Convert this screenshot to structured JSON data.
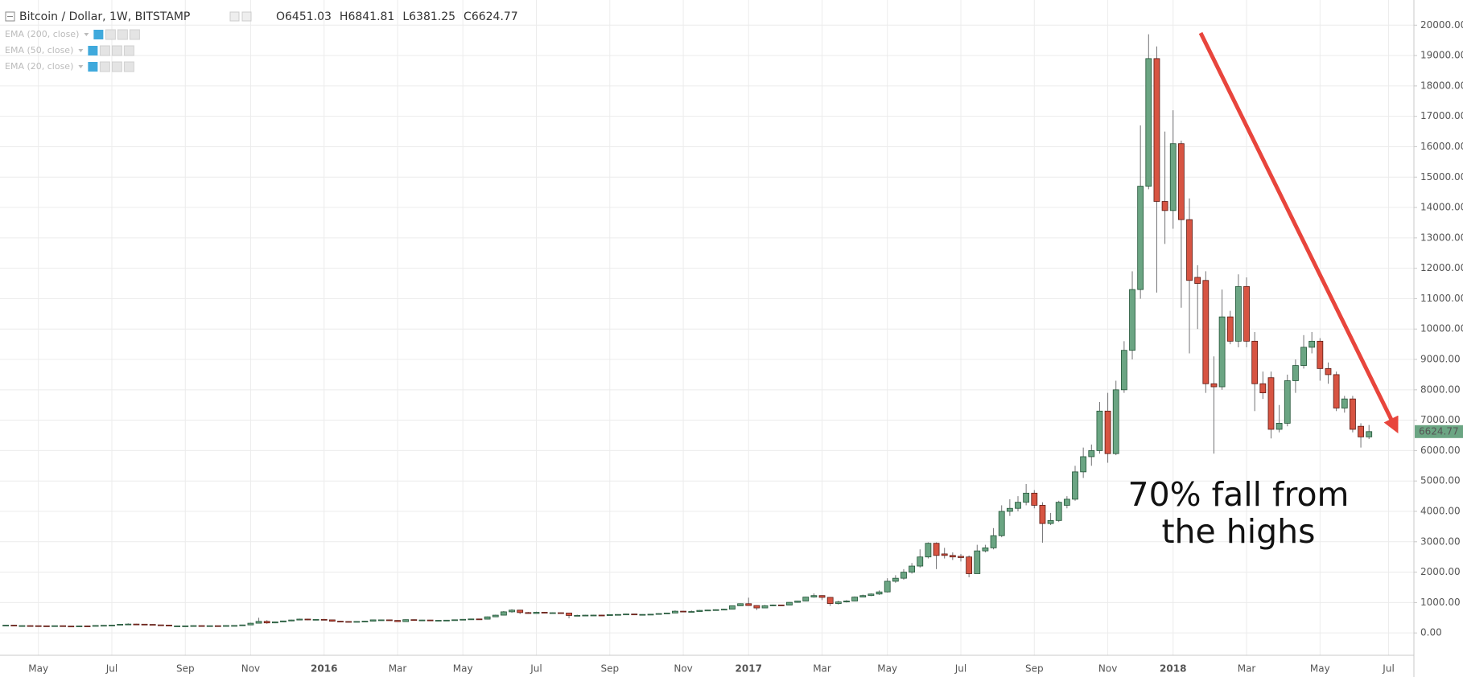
{
  "chart_data": {
    "type": "candlestick",
    "title": "Bitcoin / Dollar, 1W, BITSTAMP",
    "ohlc_readout": [
      "O6451.03",
      "H6841.81",
      "L6381.25",
      "C6624.77"
    ],
    "indicators": [
      "EMA (200, close)",
      "EMA (50, close)",
      "EMA (20, close)"
    ],
    "annotation": [
      "70% fall from",
      "the highs"
    ],
    "up_color": "#6ba583",
    "down_color": "#d75442",
    "open": [
      245,
      254,
      236,
      240,
      237,
      233,
      230,
      237,
      225,
      222,
      229,
      224,
      244,
      250,
      257,
      285,
      292,
      288,
      280,
      265,
      258,
      229,
      230,
      232,
      240,
      233,
      237,
      230,
      242,
      245,
      264,
      320,
      380,
      330,
      362,
      395,
      425,
      455,
      432,
      446,
      430,
      385,
      376,
      371,
      377,
      387,
      430,
      430,
      412,
      372,
      437,
      410,
      425,
      412,
      415,
      420,
      433,
      448,
      460,
      453,
      530,
      585,
      695,
      750,
      670,
      640,
      680,
      652,
      665,
      655,
      575,
      578,
      585,
      587,
      572,
      604,
      608,
      622,
      606,
      609,
      616,
      637,
      655,
      716,
      705,
      705,
      742,
      752,
      765,
      780,
      893,
      963,
      901,
      823,
      895,
      920,
      915,
      1007,
      1050,
      1180,
      1230,
      1170,
      968,
      1020,
      1050,
      1180,
      1230,
      1280,
      1350,
      1700,
      1800,
      2000,
      2200,
      2500,
      2950,
      2600,
      2550,
      2520,
      2500,
      1950,
      2700,
      2800,
      3200,
      4000,
      4100,
      4300,
      4600,
      4200,
      3600,
      3700,
      4200,
      4400,
      5300,
      5800,
      6000,
      7300,
      5900,
      8000,
      9300,
      11300,
      14700,
      18900,
      14200,
      13900,
      16100,
      13600,
      11700,
      11600,
      8200,
      8100,
      10400,
      9600,
      11400,
      9600,
      8200,
      8400,
      6700,
      6900,
      8300,
      8800,
      9400,
      9600,
      8700,
      8500,
      7400,
      7700,
      6800,
      6451.03
    ],
    "high": [
      260,
      262,
      246,
      247,
      243,
      239,
      244,
      241,
      230,
      236,
      234,
      251,
      258,
      265,
      295,
      315,
      300,
      295,
      285,
      270,
      262,
      236,
      238,
      246,
      244,
      243,
      240,
      248,
      252,
      270,
      335,
      500,
      420,
      372,
      400,
      435,
      470,
      465,
      455,
      460,
      435,
      395,
      385,
      385,
      395,
      440,
      440,
      440,
      420,
      445,
      445,
      432,
      430,
      422,
      428,
      440,
      455,
      468,
      468,
      540,
      600,
      720,
      780,
      760,
      690,
      700,
      690,
      675,
      670,
      660,
      600,
      595,
      595,
      592,
      610,
      615,
      630,
      628,
      615,
      620,
      645,
      665,
      740,
      725,
      740,
      755,
      760,
      775,
      795,
      900,
      975,
      1160,
      910,
      920,
      935,
      930,
      1015,
      1060,
      1190,
      1300,
      1240,
      1180,
      1060,
      1080,
      1200,
      1260,
      1300,
      1400,
      1800,
      1900,
      2100,
      2300,
      2750,
      2980,
      2980,
      2800,
      2650,
      2600,
      2550,
      2900,
      2900,
      3450,
      4200,
      4400,
      4500,
      4900,
      4700,
      4300,
      3950,
      4350,
      4500,
      5500,
      6100,
      6200,
      7600,
      7900,
      8300,
      9600,
      11900,
      16700,
      19700,
      19300,
      16500,
      17200,
      16200,
      14300,
      12100,
      11900,
      9100,
      11300,
      10600,
      11800,
      11700,
      9900,
      8600,
      8600,
      7500,
      8500,
      9000,
      9800,
      9900,
      9700,
      8900,
      8600,
      7800,
      7800,
      6900,
      6841.81
    ],
    "low": [
      240,
      230,
      228,
      230,
      226,
      223,
      225,
      218,
      215,
      217,
      218,
      220,
      238,
      244,
      252,
      280,
      278,
      270,
      258,
      250,
      222,
      220,
      224,
      228,
      226,
      228,
      224,
      226,
      236,
      240,
      258,
      310,
      300,
      320,
      355,
      385,
      415,
      420,
      420,
      420,
      370,
      360,
      365,
      365,
      370,
      380,
      420,
      400,
      365,
      365,
      400,
      405,
      405,
      405,
      410,
      415,
      428,
      440,
      445,
      445,
      520,
      575,
      660,
      620,
      630,
      630,
      645,
      645,
      645,
      480,
      560,
      565,
      570,
      565,
      568,
      598,
      600,
      600,
      600,
      605,
      612,
      630,
      650,
      680,
      690,
      700,
      735,
      745,
      760,
      775,
      885,
      890,
      750,
      815,
      880,
      900,
      910,
      995,
      1040,
      1160,
      1080,
      890,
      930,
      1000,
      1040,
      1170,
      1210,
      1250,
      1330,
      1650,
      1750,
      1950,
      2150,
      2450,
      2100,
      2450,
      2400,
      2350,
      1830,
      1950,
      2650,
      2750,
      3150,
      3850,
      4000,
      4200,
      4100,
      2970,
      3550,
      3650,
      4100,
      4350,
      5100,
      5500,
      5900,
      5600,
      5850,
      7900,
      9000,
      11000,
      14600,
      11200,
      12800,
      13300,
      10700,
      9200,
      10000,
      7900,
      5900,
      8000,
      9500,
      9400,
      9400,
      7300,
      7700,
      6400,
      6600,
      6800,
      7900,
      8700,
      9200,
      8300,
      8200,
      7300,
      7250,
      6600,
      6100,
      6381.25
    ],
    "close": [
      254,
      236,
      240,
      237,
      233,
      230,
      237,
      225,
      222,
      229,
      224,
      244,
      250,
      257,
      285,
      292,
      288,
      280,
      265,
      258,
      229,
      230,
      232,
      240,
      233,
      237,
      230,
      242,
      245,
      264,
      320,
      380,
      330,
      362,
      395,
      425,
      455,
      432,
      446,
      430,
      385,
      376,
      371,
      377,
      387,
      430,
      430,
      412,
      372,
      437,
      410,
      425,
      412,
      415,
      420,
      433,
      448,
      460,
      453,
      530,
      585,
      695,
      750,
      670,
      640,
      680,
      652,
      665,
      655,
      575,
      578,
      585,
      587,
      572,
      604,
      608,
      622,
      606,
      609,
      616,
      637,
      655,
      716,
      705,
      705,
      742,
      752,
      765,
      780,
      893,
      963,
      901,
      823,
      895,
      920,
      915,
      1007,
      1050,
      1180,
      1230,
      1170,
      968,
      1020,
      1050,
      1180,
      1230,
      1280,
      1350,
      1700,
      1800,
      2000,
      2200,
      2500,
      2950,
      2550,
      2550,
      2500,
      2480,
      1950,
      2700,
      2800,
      3200,
      4000,
      4100,
      4300,
      4600,
      4200,
      3600,
      3700,
      4300,
      4400,
      5300,
      5800,
      6000,
      7300,
      5900,
      8000,
      9300,
      11300,
      14700,
      18900,
      14200,
      13900,
      16100,
      13600,
      11600,
      11500,
      8200,
      8100,
      10400,
      9600,
      11400,
      9600,
      8200,
      7900,
      6700,
      6900,
      8300,
      8800,
      9400,
      9600,
      8700,
      8500,
      7400,
      7700,
      6700,
      6451,
      6624.77
    ],
    "xlim": [
      -0.7,
      172.5
    ],
    "xticks": [
      {
        "value": 4,
        "label": "May"
      },
      {
        "value": 13,
        "label": "Jul"
      },
      {
        "value": 22,
        "label": "Sep"
      },
      {
        "value": 30,
        "label": "Nov"
      },
      {
        "value": 39,
        "label": "2016"
      },
      {
        "value": 48,
        "label": "Mar"
      },
      {
        "value": 56,
        "label": "May"
      },
      {
        "value": 65,
        "label": "Jul"
      },
      {
        "value": 74,
        "label": "Sep"
      },
      {
        "value": 83,
        "label": "Nov"
      },
      {
        "value": 91,
        "label": "2017"
      },
      {
        "value": 100,
        "label": "Mar"
      },
      {
        "value": 108,
        "label": "May"
      },
      {
        "value": 117,
        "label": "Jul"
      },
      {
        "value": 126,
        "label": "Sep"
      },
      {
        "value": 135,
        "label": "Nov"
      },
      {
        "value": 143,
        "label": "2018"
      },
      {
        "value": 152,
        "label": "Mar"
      },
      {
        "value": 161,
        "label": "May"
      },
      {
        "value": 169.4,
        "label": "Jul"
      }
    ],
    "ylim": [
      -736,
      20828
    ],
    "yticks": [
      {
        "value": 0,
        "label": "0.00"
      },
      {
        "value": 1000,
        "label": "1000.00"
      },
      {
        "value": 2000,
        "label": "2000.00"
      },
      {
        "value": 3000,
        "label": "3000.00"
      },
      {
        "value": 4000,
        "label": "4000.00"
      },
      {
        "value": 5000,
        "label": "5000.00"
      },
      {
        "value": 6000,
        "label": "6000.00"
      },
      {
        "value": 7000,
        "label": "7000.00"
      },
      {
        "value": 8000,
        "label": "8000.00"
      },
      {
        "value": 9000,
        "label": "9000.00"
      },
      {
        "value": 10000,
        "label": "10000.00"
      },
      {
        "value": 11000,
        "label": "11000.00"
      },
      {
        "value": 12000,
        "label": "12000.00"
      },
      {
        "value": 13000,
        "label": "13000.00"
      },
      {
        "value": 14000,
        "label": "14000.00"
      },
      {
        "value": 15000,
        "label": "15000.00"
      },
      {
        "value": 16000,
        "label": "16000.00"
      },
      {
        "value": 17000,
        "label": "17000.00"
      },
      {
        "value": 18000,
        "label": "18000.00"
      },
      {
        "value": 19000,
        "label": "19000.00"
      },
      {
        "value": 20000,
        "label": "20000.00"
      }
    ],
    "grid": true
  }
}
